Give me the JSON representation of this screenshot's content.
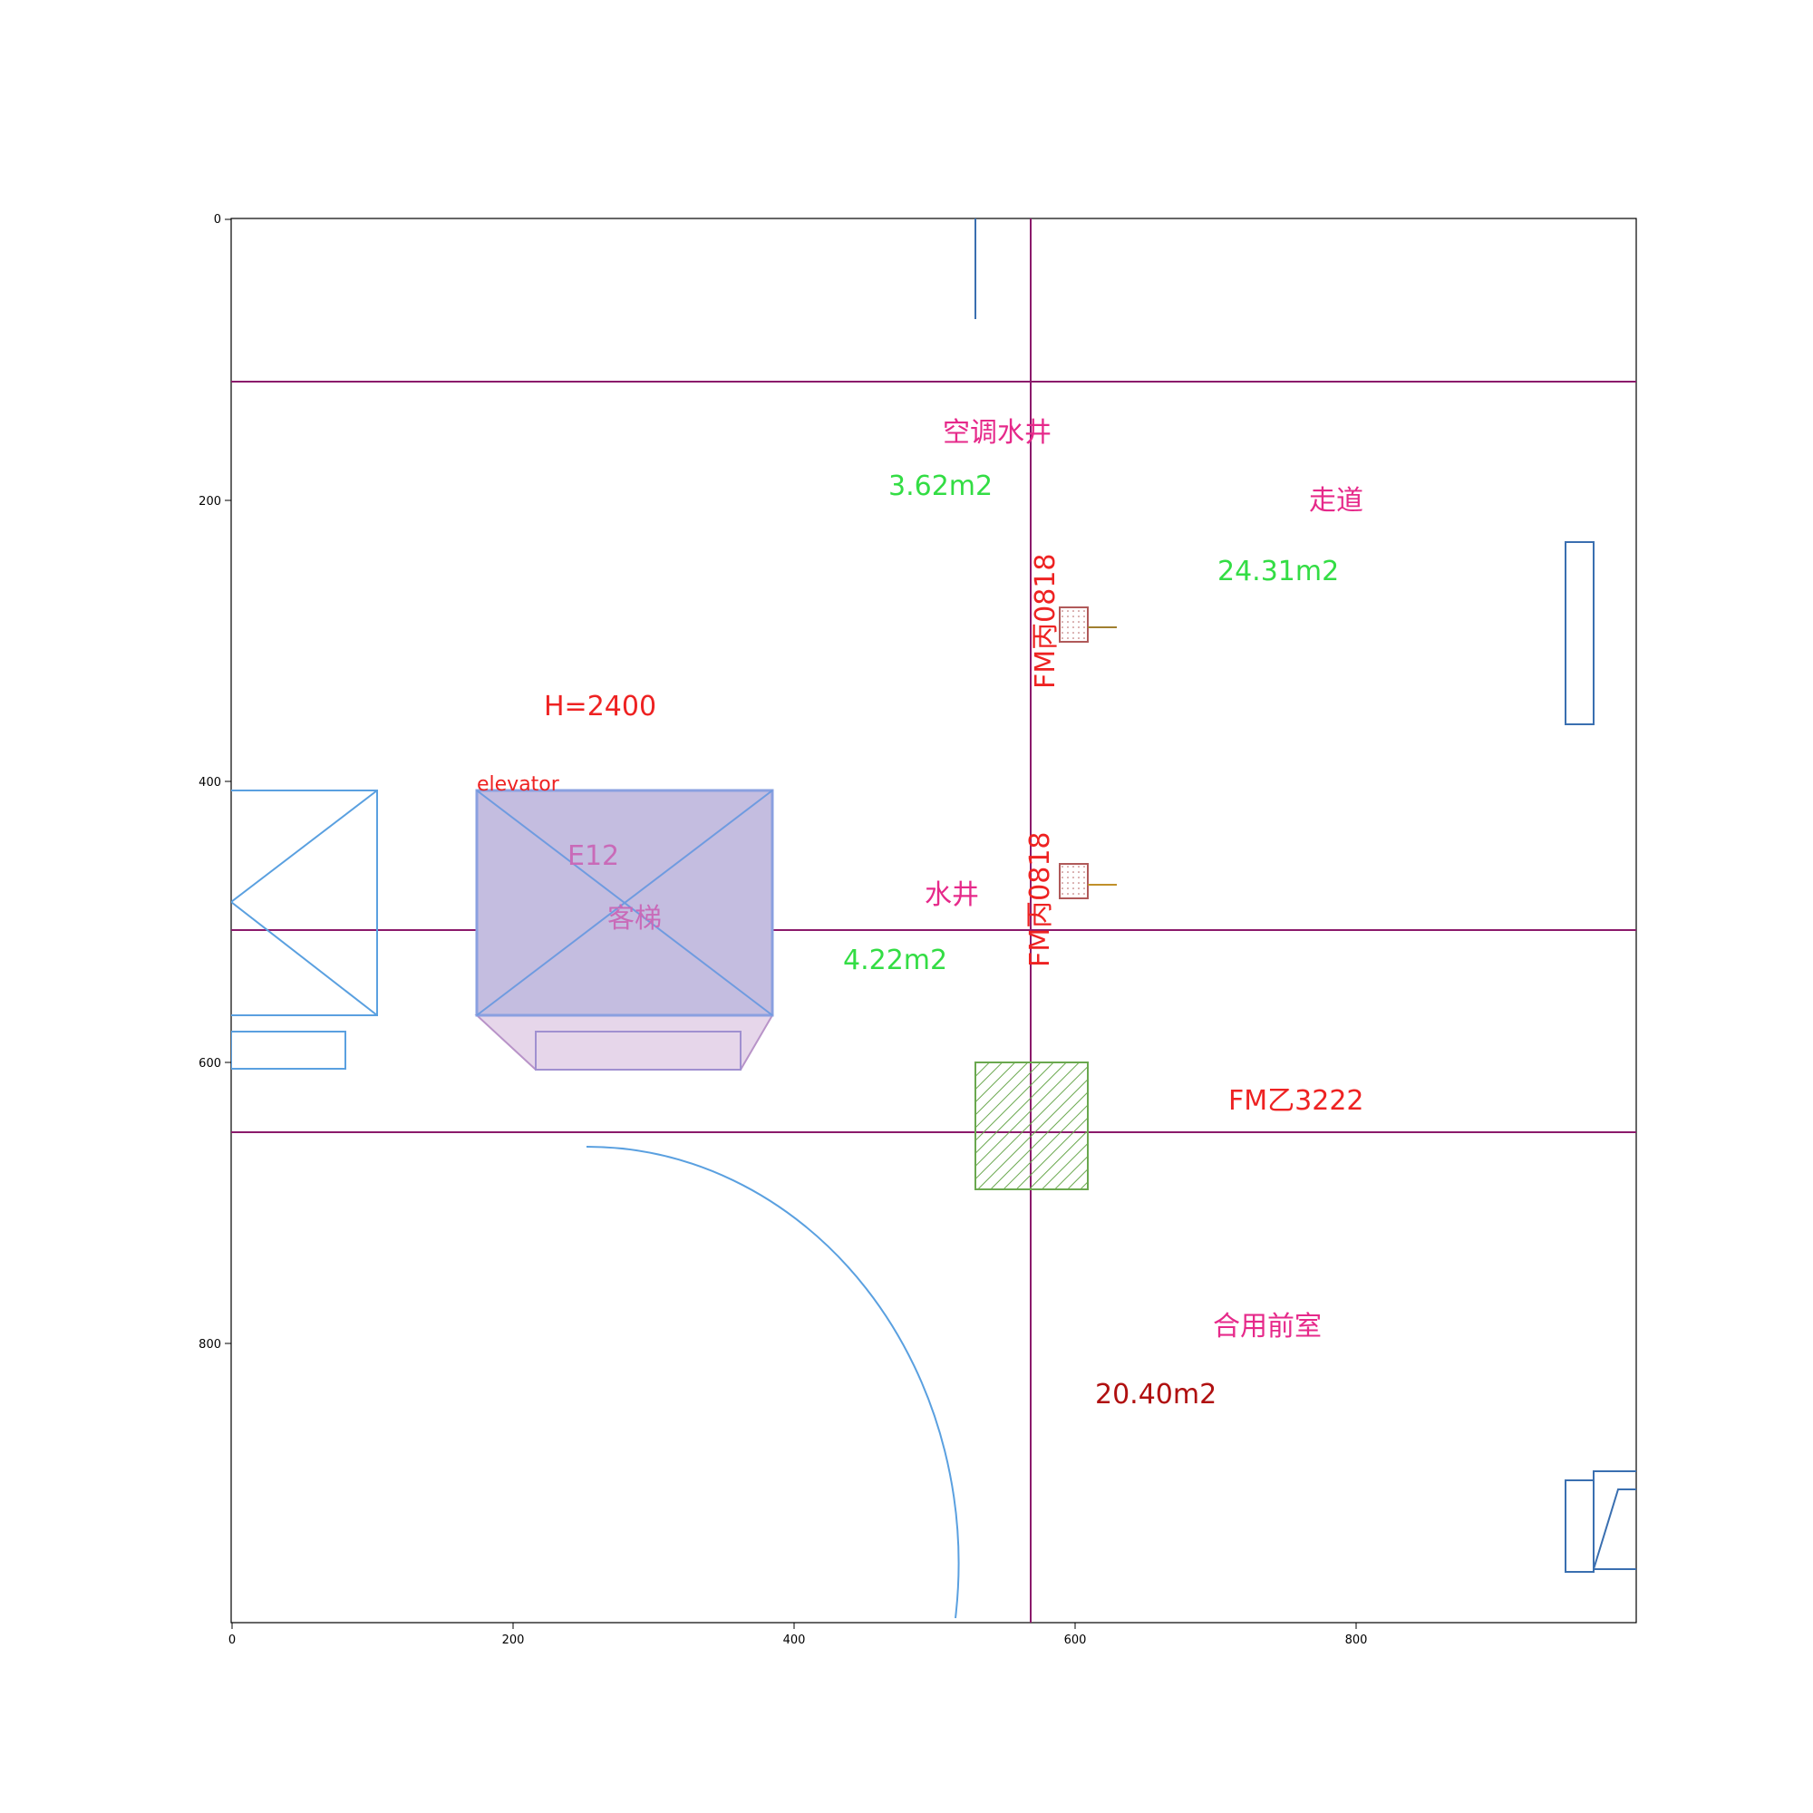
{
  "axes": {
    "x_ticks": [
      "0",
      "200",
      "400",
      "600",
      "800"
    ],
    "y_ticks": [
      "0",
      "200",
      "400",
      "600",
      "800"
    ]
  },
  "labels": {
    "ac_water_shaft": "空调水井",
    "ac_water_shaft_area": "3.62m2",
    "corridor": "走道",
    "corridor_area": "24.31m2",
    "door_top": "FM丙0818",
    "height": "H=2400",
    "elevator_tag": "elevator",
    "elevator_id": "E12",
    "elevator_name": "客梯",
    "water_shaft": "水井",
    "water_shaft_area": "4.22m2",
    "door_middle": "FM丙0818",
    "fire_door": "FM乙3222",
    "shared_anteroom": "合用前室",
    "shared_anteroom_area": "20.40m2"
  },
  "colors": {
    "grid_line": "#8b1a6b",
    "room_name": "#e6298a",
    "area_green": "#33dd44",
    "door_red": "#ee2222",
    "area_darkred": "#b01010",
    "elevator_fill": "#c4bde0",
    "elevator_line": "#6f9be0",
    "elevator_text": "#c96ab8",
    "symbol_blue": "#5aa0e0",
    "wall_blue": "#3a6fb0",
    "hatch_green": "#6aa84f"
  }
}
